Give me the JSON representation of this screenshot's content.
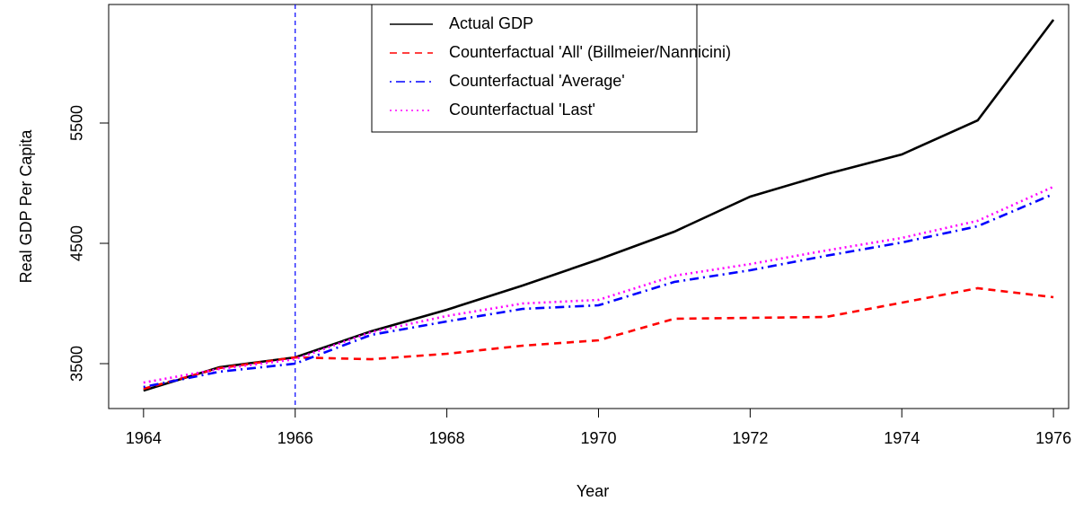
{
  "chart_data": {
    "type": "line",
    "x_label": "Year",
    "y_label": "Real GDP Per Capita",
    "x": [
      1964,
      1965,
      1966,
      1967,
      1968,
      1969,
      1970,
      1971,
      1972,
      1973,
      1974,
      1975,
      1976
    ],
    "series": [
      {
        "name": "Actual GDP",
        "color": "#000000",
        "dash": "solid",
        "values": [
          3276,
          3470,
          3552,
          3769,
          3948,
          4149,
          4366,
          4597,
          4888,
          5075,
          5239,
          5522,
          6358
        ]
      },
      {
        "name": "Counterfactual 'All' (Billmeier/Nannicini)",
        "color": "#ff0000",
        "dash": "dashed",
        "values": [
          3291,
          3463,
          3552,
          3537,
          3582,
          3649,
          3694,
          3873,
          3881,
          3888,
          4007,
          4127,
          4052
        ]
      },
      {
        "name": "Counterfactual 'Average'",
        "color": "#0000ff",
        "dash": "dotdash",
        "values": [
          3306,
          3433,
          3500,
          3739,
          3851,
          3955,
          3985,
          4179,
          4276,
          4396,
          4507,
          4642,
          4910
        ]
      },
      {
        "name": "Counterfactual 'Last'",
        "color": "#ff00ff",
        "dash": "dotted",
        "values": [
          3343,
          3455,
          3537,
          3761,
          3896,
          4000,
          4030,
          4231,
          4328,
          4440,
          4545,
          4687,
          4970
        ]
      }
    ],
    "vline": {
      "x": 1966,
      "color": "#0000ff"
    },
    "xlim": [
      1963.54,
      1976.2
    ],
    "ylim": [
      3127,
      6485
    ],
    "xticks": [
      1964,
      1966,
      1968,
      1970,
      1972,
      1974,
      1976
    ],
    "yticks": [
      3500,
      4500,
      5500
    ],
    "legend": "top-center"
  }
}
